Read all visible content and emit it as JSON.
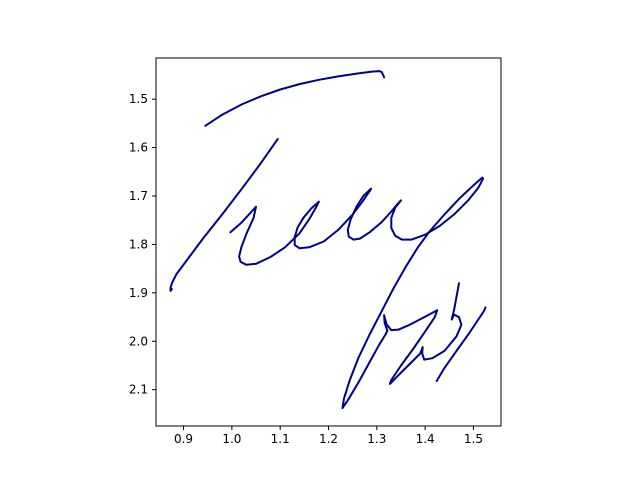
{
  "chart_data": {
    "type": "line",
    "title": "",
    "xlabel": "",
    "ylabel": "",
    "xlim": [
      0.843,
      1.557
    ],
    "ylim": [
      2.175,
      1.415
    ],
    "y_inverted": true,
    "grid": false,
    "legend": "none",
    "x_ticks": [
      0.9,
      1.0,
      1.1,
      1.2,
      1.3,
      1.4,
      1.5
    ],
    "x_tick_labels": [
      "0.9",
      "1.0",
      "1.1",
      "1.2",
      "1.3",
      "1.4",
      "1.5"
    ],
    "y_ticks": [
      1.5,
      1.6,
      1.7,
      1.8,
      1.9,
      2.0,
      2.1
    ],
    "y_tick_labels": [
      "1.5",
      "1.6",
      "1.7",
      "1.8",
      "1.9",
      "2.0",
      "2.1"
    ],
    "series": [
      {
        "color": "#00008b",
        "strokes": [
          [
            [
              0.945,
              1.555
            ],
            [
              0.98,
              1.532
            ],
            [
              1.02,
              1.511
            ],
            [
              1.06,
              1.494
            ],
            [
              1.1,
              1.48
            ],
            [
              1.14,
              1.469
            ],
            [
              1.18,
              1.46
            ],
            [
              1.22,
              1.453
            ],
            [
              1.26,
              1.447
            ],
            [
              1.29,
              1.443
            ],
            [
              1.305,
              1.442
            ],
            [
              1.31,
              1.444
            ],
            [
              1.313,
              1.45
            ],
            [
              1.315,
              1.455
            ]
          ],
          [
            [
              1.095,
              1.582
            ],
            [
              1.06,
              1.632
            ],
            [
              1.02,
              1.686
            ],
            [
              0.98,
              1.738
            ],
            [
              0.94,
              1.788
            ],
            [
              0.905,
              1.835
            ],
            [
              0.885,
              1.862
            ],
            [
              0.876,
              1.88
            ],
            [
              0.873,
              1.89
            ],
            [
              0.873,
              1.896
            ],
            [
              0.876,
              1.892
            ]
          ],
          [
            [
              0.997,
              1.775
            ],
            [
              1.02,
              1.755
            ],
            [
              1.04,
              1.733
            ],
            [
              1.05,
              1.722
            ],
            [
              1.045,
              1.745
            ],
            [
              1.03,
              1.778
            ],
            [
              1.02,
              1.805
            ],
            [
              1.015,
              1.825
            ],
            [
              1.018,
              1.836
            ],
            [
              1.03,
              1.842
            ],
            [
              1.05,
              1.84
            ],
            [
              1.08,
              1.826
            ],
            [
              1.11,
              1.806
            ],
            [
              1.14,
              1.777
            ],
            [
              1.16,
              1.748
            ],
            [
              1.175,
              1.722
            ],
            [
              1.18,
              1.712
            ]
          ],
          [
            [
              1.18,
              1.712
            ],
            [
              1.165,
              1.725
            ],
            [
              1.148,
              1.745
            ],
            [
              1.136,
              1.765
            ],
            [
              1.13,
              1.785
            ],
            [
              1.13,
              1.801
            ],
            [
              1.14,
              1.808
            ],
            [
              1.16,
              1.806
            ],
            [
              1.19,
              1.794
            ],
            [
              1.22,
              1.77
            ],
            [
              1.25,
              1.738
            ],
            [
              1.27,
              1.712
            ],
            [
              1.285,
              1.69
            ],
            [
              1.288,
              1.685
            ]
          ],
          [
            [
              1.288,
              1.685
            ],
            [
              1.272,
              1.7
            ],
            [
              1.258,
              1.722
            ],
            [
              1.246,
              1.748
            ],
            [
              1.24,
              1.77
            ],
            [
              1.242,
              1.784
            ],
            [
              1.252,
              1.79
            ],
            [
              1.265,
              1.788
            ],
            [
              1.285,
              1.775
            ],
            [
              1.31,
              1.754
            ],
            [
              1.33,
              1.732
            ],
            [
              1.345,
              1.714
            ],
            [
              1.35,
              1.709
            ]
          ],
          [
            [
              1.35,
              1.709
            ],
            [
              1.338,
              1.724
            ],
            [
              1.33,
              1.745
            ],
            [
              1.33,
              1.766
            ],
            [
              1.338,
              1.782
            ],
            [
              1.352,
              1.79
            ],
            [
              1.372,
              1.79
            ],
            [
              1.4,
              1.78
            ],
            [
              1.43,
              1.762
            ],
            [
              1.46,
              1.738
            ],
            [
              1.49,
              1.708
            ],
            [
              1.51,
              1.683
            ],
            [
              1.52,
              1.664
            ],
            [
              1.518,
              1.662
            ],
            [
              1.5,
              1.678
            ],
            [
              1.47,
              1.706
            ],
            [
              1.44,
              1.738
            ],
            [
              1.41,
              1.772
            ],
            [
              1.385,
              1.806
            ],
            [
              1.36,
              1.846
            ],
            [
              1.335,
              1.89
            ],
            [
              1.31,
              1.938
            ],
            [
              1.285,
              1.986
            ],
            [
              1.262,
              2.034
            ],
            [
              1.244,
              2.08
            ],
            [
              1.232,
              2.118
            ],
            [
              1.229,
              2.138
            ],
            [
              1.24,
              2.122
            ],
            [
              1.262,
              2.085
            ],
            [
              1.285,
              2.043
            ],
            [
              1.305,
              2.007
            ],
            [
              1.318,
              1.986
            ],
            [
              1.322,
              1.978
            ]
          ],
          [
            [
              1.322,
              1.978
            ],
            [
              1.316,
              1.962
            ],
            [
              1.315,
              1.946
            ],
            [
              1.32,
              1.965
            ],
            [
              1.33,
              1.977
            ],
            [
              1.345,
              1.976
            ],
            [
              1.368,
              1.966
            ],
            [
              1.395,
              1.952
            ],
            [
              1.425,
              1.936
            ],
            [
              1.42,
              1.95
            ],
            [
              1.4,
              1.98
            ],
            [
              1.375,
              2.016
            ],
            [
              1.35,
              2.05
            ],
            [
              1.33,
              2.08
            ],
            [
              1.327,
              2.088
            ],
            [
              1.34,
              2.075
            ],
            [
              1.365,
              2.05
            ],
            [
              1.39,
              2.025
            ],
            [
              1.395,
              2.012
            ],
            [
              1.394,
              2.025
            ],
            [
              1.398,
              2.038
            ],
            [
              1.415,
              2.035
            ],
            [
              1.44,
              2.02
            ],
            [
              1.465,
              1.99
            ],
            [
              1.475,
              1.966
            ],
            [
              1.47,
              1.95
            ],
            [
              1.46,
              1.945
            ],
            [
              1.455,
              1.955
            ],
            [
              1.46,
              1.935
            ],
            [
              1.47,
              1.88
            ]
          ],
          [
            [
              1.424,
              2.082
            ],
            [
              1.44,
              2.055
            ],
            [
              1.465,
              2.02
            ],
            [
              1.49,
              1.985
            ],
            [
              1.51,
              1.955
            ],
            [
              1.522,
              1.937
            ],
            [
              1.525,
              1.93
            ]
          ]
        ]
      }
    ]
  }
}
